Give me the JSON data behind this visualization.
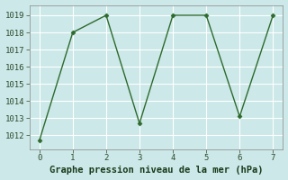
{
  "x": [
    0,
    1,
    2,
    3,
    4,
    5,
    6,
    7
  ],
  "y": [
    1011.7,
    1018.0,
    1019.0,
    1012.7,
    1019.0,
    1019.0,
    1013.1,
    1019.0
  ],
  "line_color": "#2d6a2d",
  "marker": "D",
  "marker_size": 2.5,
  "bg_color": "#cce8e8",
  "grid_color": "#ffffff",
  "xlabel": "Graphe pression niveau de la mer (hPa)",
  "ylabel": "",
  "xlim": [
    -0.3,
    7.3
  ],
  "ylim": [
    1011.2,
    1019.6
  ],
  "yticks": [
    1012,
    1013,
    1014,
    1015,
    1016,
    1017,
    1018,
    1019
  ],
  "xticks": [
    0,
    1,
    2,
    3,
    4,
    5,
    6,
    7
  ],
  "tick_fontsize": 6.5,
  "xlabel_fontsize": 7.5,
  "line_width": 1.0
}
